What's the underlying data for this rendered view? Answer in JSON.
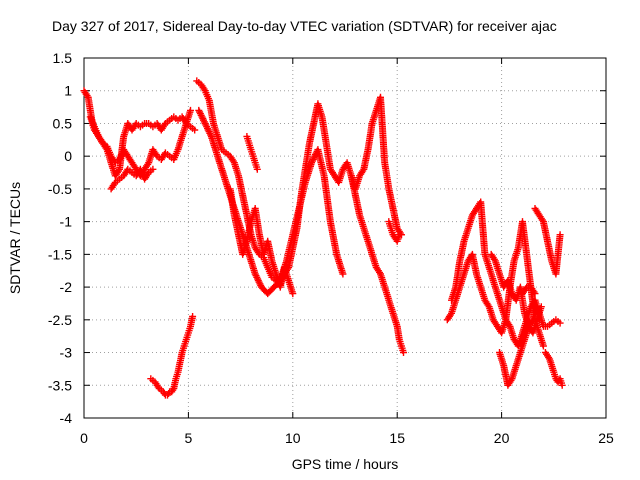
{
  "chart_data": {
    "type": "scatter",
    "title": "Day 327 of 2017, Sidereal Day-to-day VTEC variation (SDTVAR) for receiver ajac",
    "xlabel": "GPS time / hours",
    "ylabel": "SDTVAR / TECUs",
    "xlim": [
      0,
      25
    ],
    "ylim": [
      -4,
      1.5
    ],
    "xticks": [
      "0",
      "5",
      "10",
      "15",
      "20",
      "25"
    ],
    "yticks": [
      "1.5",
      "1",
      "0.5",
      "0",
      "-0.5",
      "-1",
      "-1.5",
      "-2",
      "-2.5",
      "-3",
      "-3.5",
      "-4"
    ],
    "grid": true,
    "marker": "+",
    "color": "#ff0000",
    "series": [
      {
        "name": "segment-1",
        "x": [
          0.0,
          0.2,
          0.4,
          0.5,
          0.7,
          0.9,
          1.1,
          1.3,
          1.5,
          1.7,
          1.9,
          2.1,
          2.3,
          2.5,
          2.7,
          2.9,
          3.1,
          3.3,
          3.5,
          3.7,
          3.9,
          4.1,
          4.3,
          4.5,
          4.7,
          4.9,
          5.1,
          5.3
        ],
        "y": [
          1.0,
          0.9,
          0.5,
          0.4,
          0.3,
          0.2,
          0.1,
          -0.1,
          -0.3,
          -0.2,
          0.3,
          0.5,
          0.4,
          0.5,
          0.45,
          0.5,
          0.5,
          0.45,
          0.5,
          0.4,
          0.5,
          0.55,
          0.6,
          0.55,
          0.6,
          0.5,
          0.45,
          0.4
        ]
      },
      {
        "name": "segment-2",
        "x": [
          0.3,
          0.5,
          0.7,
          0.9,
          1.1,
          1.3,
          1.5,
          1.7,
          1.9,
          2.1,
          2.3,
          2.5,
          2.7,
          2.9,
          3.1,
          3.3,
          3.5,
          3.7,
          3.9,
          4.1,
          4.3,
          4.5,
          4.7,
          4.9,
          5.1
        ],
        "y": [
          0.6,
          0.45,
          0.3,
          0.2,
          0.15,
          0.0,
          -0.1,
          -0.05,
          0.1,
          0.0,
          -0.1,
          -0.2,
          -0.3,
          -0.2,
          -0.1,
          0.1,
          0.0,
          -0.05,
          0.05,
          0.0,
          -0.05,
          0.1,
          0.3,
          0.5,
          0.7
        ]
      },
      {
        "name": "segment-3",
        "x": [
          1.3,
          1.5,
          1.7,
          1.9,
          2.1,
          2.3,
          2.5,
          2.7,
          2.9,
          3.1,
          3.3
        ],
        "y": [
          -0.5,
          -0.4,
          -0.35,
          -0.3,
          -0.2,
          -0.25,
          -0.3,
          -0.2,
          -0.35,
          -0.25,
          -0.2
        ]
      },
      {
        "name": "segment-4",
        "x": [
          3.2,
          3.4,
          3.6,
          3.8,
          3.9,
          4.0,
          4.1,
          4.2,
          4.3,
          4.4,
          4.5,
          4.6,
          4.7,
          4.8,
          4.9,
          5.0,
          5.1,
          5.2
        ],
        "y": [
          -3.4,
          -3.45,
          -3.55,
          -3.6,
          -3.65,
          -3.65,
          -3.6,
          -3.6,
          -3.55,
          -3.4,
          -3.3,
          -3.15,
          -3.0,
          -2.9,
          -2.8,
          -2.7,
          -2.6,
          -2.45
        ]
      },
      {
        "name": "segment-5",
        "x": [
          5.4,
          5.6,
          5.8,
          6.0,
          6.2,
          6.4,
          6.6,
          6.8,
          7.0,
          7.2,
          7.4,
          7.6,
          7.8,
          8.0,
          8.2,
          8.4,
          8.6,
          8.8,
          9.0,
          9.2,
          9.4,
          9.6,
          9.8,
          10.0,
          10.2,
          10.4,
          10.6,
          10.8,
          11.0,
          11.2,
          11.4,
          11.6,
          11.8,
          12.0,
          12.2,
          12.4,
          12.6,
          12.8,
          13.0,
          13.2,
          13.4,
          13.6,
          13.8,
          14.0,
          14.2,
          14.4,
          14.6,
          14.8,
          15.0,
          15.2
        ],
        "y": [
          1.15,
          1.1,
          1.0,
          0.85,
          0.5,
          0.3,
          0.1,
          0.05,
          0.0,
          -0.1,
          -0.3,
          -0.6,
          -0.9,
          -1.2,
          -1.4,
          -1.5,
          -1.55,
          -1.7,
          -1.85,
          -1.9,
          -1.95,
          -1.8,
          -1.7,
          -1.4,
          -1.1,
          -0.6,
          -0.2,
          0.2,
          0.5,
          0.8,
          0.6,
          0.2,
          -0.2,
          -0.3,
          -0.4,
          -0.2,
          -0.1,
          -0.3,
          -0.5,
          -0.3,
          -0.2,
          0.1,
          0.5,
          0.7,
          0.9,
          -0.1,
          -0.5,
          -0.8,
          -1.1,
          -1.2
        ]
      },
      {
        "name": "segment-6",
        "x": [
          5.5,
          5.8,
          6.1,
          6.4,
          6.7,
          7.0,
          7.3,
          7.6,
          7.9,
          8.2,
          8.5,
          8.8,
          9.1,
          9.4,
          9.7,
          10.0,
          10.3,
          10.6,
          10.9,
          11.2,
          11.5,
          11.8,
          12.1,
          12.4
        ],
        "y": [
          0.7,
          0.5,
          0.3,
          0.0,
          -0.3,
          -0.6,
          -0.9,
          -1.2,
          -1.5,
          -1.8,
          -2.0,
          -2.1,
          -2.0,
          -1.9,
          -1.6,
          -1.2,
          -0.8,
          -0.4,
          -0.1,
          0.1,
          -0.3,
          -1.0,
          -1.5,
          -1.8
        ]
      },
      {
        "name": "segment-7",
        "x": [
          7.0,
          7.2,
          7.4,
          7.6,
          7.8,
          8.0,
          8.2,
          8.4,
          8.6,
          8.8,
          9.0,
          9.2,
          9.4,
          9.6,
          9.8,
          10.0
        ],
        "y": [
          -0.5,
          -0.9,
          -1.2,
          -1.5,
          -1.3,
          -1.0,
          -0.8,
          -1.2,
          -1.5,
          -1.3,
          -1.6,
          -1.8,
          -2.0,
          -1.7,
          -1.9,
          -2.1
        ]
      },
      {
        "name": "segment-8",
        "x": [
          7.8,
          7.9,
          8.0,
          8.1,
          8.2,
          8.3
        ],
        "y": [
          0.3,
          0.2,
          0.1,
          0.0,
          -0.1,
          -0.2
        ]
      },
      {
        "name": "segment-9",
        "x": [
          12.8,
          13.0,
          13.2,
          13.4,
          13.6,
          13.8,
          14.0,
          14.2,
          14.4,
          14.6,
          14.8,
          15.0,
          15.1,
          15.2,
          15.3
        ],
        "y": [
          -0.3,
          -0.6,
          -0.9,
          -1.1,
          -1.3,
          -1.5,
          -1.7,
          -1.8,
          -2.0,
          -2.2,
          -2.4,
          -2.6,
          -2.8,
          -2.9,
          -3.0
        ]
      },
      {
        "name": "segment-10",
        "x": [
          14.6,
          14.7,
          14.8,
          14.9,
          15.0,
          15.1,
          15.2
        ],
        "y": [
          -1.0,
          -1.1,
          -1.2,
          -1.25,
          -1.3,
          -1.2,
          -1.2
        ]
      },
      {
        "name": "segment-11",
        "x": [
          17.4,
          17.6,
          17.8,
          18.0,
          18.2,
          18.4,
          18.6,
          18.8,
          19.0,
          19.2,
          19.4,
          19.6,
          19.8,
          20.0,
          20.2,
          20.4,
          20.6,
          20.8,
          21.0,
          21.2,
          21.4,
          21.6,
          21.8,
          22.0,
          22.2,
          22.4,
          22.6,
          22.8
        ],
        "y": [
          -2.5,
          -2.4,
          -2.2,
          -2.0,
          -1.8,
          -1.6,
          -1.5,
          -1.8,
          -2.0,
          -2.2,
          -2.3,
          -2.5,
          -2.6,
          -2.7,
          -2.5,
          -2.6,
          -2.8,
          -2.9,
          -2.7,
          -2.5,
          -2.3,
          -2.2,
          -2.4,
          -2.6,
          -2.6,
          -2.55,
          -2.5,
          -2.55
        ]
      },
      {
        "name": "segment-12",
        "x": [
          17.6,
          17.8,
          18.0,
          18.2,
          18.4,
          18.6,
          18.8,
          19.0,
          19.2,
          19.4,
          19.6,
          19.8,
          20.0,
          20.2,
          20.4,
          20.6,
          20.8,
          21.0,
          21.2,
          21.4,
          21.6,
          21.8,
          22.0
        ],
        "y": [
          -2.2,
          -2.0,
          -1.6,
          -1.3,
          -1.1,
          -0.9,
          -0.8,
          -0.7,
          -1.5,
          -1.7,
          -1.9,
          -2.1,
          -2.3,
          -2.5,
          -2.0,
          -1.6,
          -1.4,
          -1.0,
          -1.5,
          -2.0,
          -2.5,
          -2.7,
          -2.9
        ]
      },
      {
        "name": "segment-13",
        "x": [
          19.5,
          19.7,
          19.9,
          20.1,
          20.3,
          20.5,
          20.7,
          20.9,
          21.1,
          21.3,
          21.5,
          21.7
        ],
        "y": [
          -1.5,
          -1.6,
          -1.8,
          -2.0,
          -1.9,
          -2.1,
          -2.2,
          -2.0,
          -2.4,
          -2.6,
          -2.5,
          -2.3
        ]
      },
      {
        "name": "segment-14",
        "x": [
          19.9,
          20.1,
          20.3,
          20.5,
          20.7,
          20.9,
          21.1,
          21.3,
          21.5,
          21.7,
          21.9
        ],
        "y": [
          -3.0,
          -3.2,
          -3.5,
          -3.4,
          -3.2,
          -3.0,
          -2.8,
          -2.6,
          -2.7,
          -2.5,
          -2.3
        ]
      },
      {
        "name": "segment-15",
        "x": [
          22.1,
          22.3,
          22.5,
          22.6,
          22.7,
          22.8,
          22.9
        ],
        "y": [
          -3.0,
          -3.1,
          -3.3,
          -3.4,
          -3.45,
          -3.4,
          -3.5
        ]
      },
      {
        "name": "segment-16",
        "x": [
          21.6,
          21.8,
          22.0,
          22.2,
          22.4,
          22.6,
          22.8
        ],
        "y": [
          -0.8,
          -0.9,
          -1.0,
          -1.3,
          -1.6,
          -1.8,
          -1.2
        ]
      },
      {
        "name": "segment-17",
        "x": [
          21.0,
          21.2,
          21.4,
          21.6
        ],
        "y": [
          -2.1,
          -2.0,
          -2.0,
          -2.1
        ]
      }
    ]
  }
}
